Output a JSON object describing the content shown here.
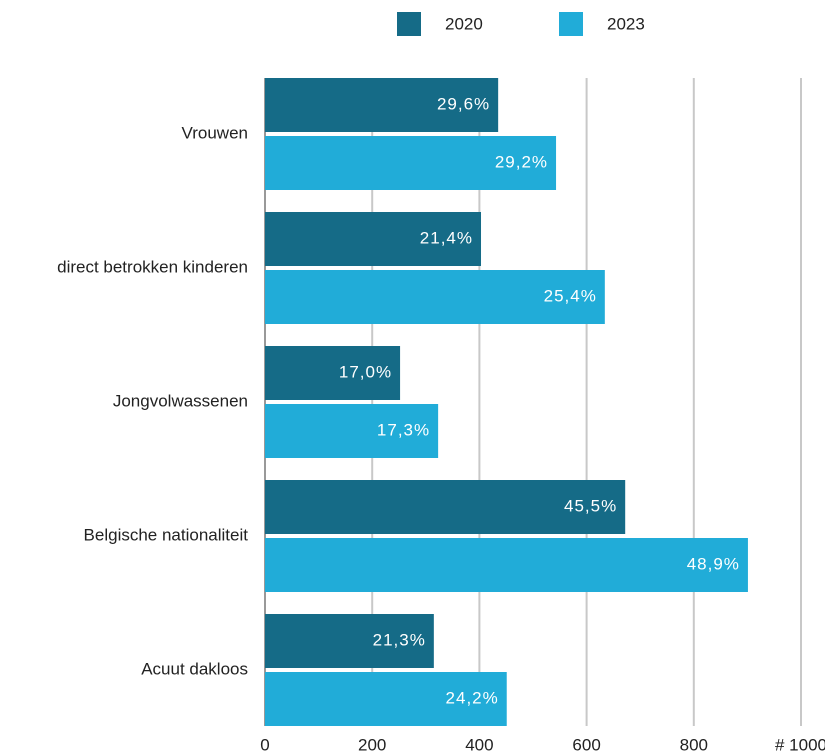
{
  "chart_data": {
    "type": "barh",
    "categories": [
      "Vrouwen",
      "direct betrokken kinderen",
      "Jongvolwassenen",
      "Belgische nationaliteit",
      "Acuut dakloos"
    ],
    "series": [
      {
        "name": "2020",
        "color": "#156b87",
        "values": [
          435,
          403,
          252,
          672,
          315
        ],
        "labels": [
          "29,6%",
          "21,4%",
          "17,0%",
          "45,5%",
          "21,3%"
        ]
      },
      {
        "name": "2023",
        "color": "#21acd8",
        "values": [
          543,
          634,
          323,
          901,
          451
        ],
        "labels": [
          "29,2%",
          "25,4%",
          "17,3%",
          "48,9%",
          "24,2%"
        ]
      }
    ],
    "xlim": [
      0,
      1000
    ],
    "xticks": [
      0,
      200,
      400,
      600,
      800,
      {
        "value": 1000,
        "label": "# 1000"
      }
    ],
    "grid": true
  }
}
